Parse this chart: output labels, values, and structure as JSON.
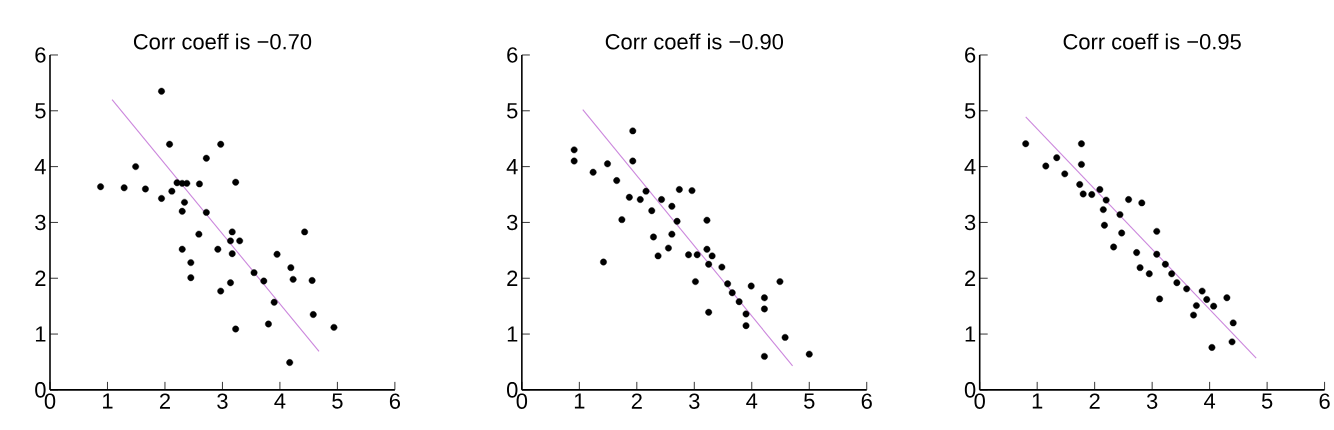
{
  "chart_data": [
    {
      "type": "scatter",
      "title": "Corr coeff is −0.70",
      "xlim": [
        0,
        6
      ],
      "ylim": [
        0,
        6
      ],
      "xticks": [
        0,
        1,
        2,
        3,
        4,
        5,
        6
      ],
      "yticks": [
        0,
        1,
        2,
        3,
        4,
        5,
        6
      ],
      "marker": "circle",
      "series": [
        {
          "color": "#000000",
          "x": [
            0.88,
            1.29,
            1.49,
            1.66,
            1.94,
            1.94,
            2.08,
            2.12,
            2.21,
            2.3,
            2.38,
            2.6,
            2.34,
            2.3,
            2.3,
            2.45,
            2.45,
            2.59,
            2.72,
            2.72,
            2.97,
            2.92,
            3.23,
            3.17,
            3.14,
            3.3,
            3.17,
            3.14,
            2.97,
            3.23,
            3.55,
            3.72,
            3.8,
            3.9,
            3.95,
            4.19,
            4.23,
            4.43,
            4.56,
            4.58,
            4.17,
            4.94
          ],
          "values": [
            3.64,
            3.62,
            4.0,
            3.6,
            5.35,
            3.43,
            4.4,
            3.56,
            3.71,
            3.7,
            3.7,
            3.69,
            3.36,
            3.2,
            2.52,
            2.28,
            2.01,
            2.79,
            4.15,
            3.18,
            4.4,
            2.52,
            3.72,
            2.83,
            2.67,
            2.67,
            2.44,
            1.92,
            1.77,
            1.09,
            2.1,
            1.95,
            1.18,
            1.57,
            2.43,
            2.19,
            1.98,
            2.83,
            1.96,
            1.35,
            0.49,
            1.12
          ]
        },
        {
          "type": "line",
          "marker": "none",
          "color": "#cc88dd",
          "x": [
            1.08,
            4.68
          ],
          "values": [
            5.2,
            0.69
          ]
        }
      ]
    },
    {
      "type": "scatter",
      "title": "Corr coeff is −0.90",
      "xlim": [
        0,
        6
      ],
      "ylim": [
        0,
        6
      ],
      "xticks": [
        0,
        1,
        2,
        3,
        4,
        5,
        6
      ],
      "yticks": [
        0,
        1,
        2,
        3,
        4,
        5,
        6
      ],
      "marker": "circle",
      "series": [
        {
          "color": "#000000",
          "x": [
            0.91,
            0.91,
            1.24,
            1.49,
            1.65,
            1.74,
            1.42,
            1.93,
            1.93,
            1.87,
            2.06,
            2.16,
            2.26,
            2.43,
            2.61,
            2.29,
            2.37,
            2.55,
            2.61,
            2.74,
            2.96,
            2.7,
            2.9,
            3.05,
            3.02,
            3.22,
            3.22,
            3.31,
            3.25,
            3.48,
            3.58,
            3.66,
            3.78,
            3.25,
            3.9,
            3.9,
            3.99,
            4.22,
            4.22,
            4.49,
            4.58,
            4.22,
            5.0
          ],
          "values": [
            4.3,
            4.1,
            3.9,
            4.05,
            3.75,
            3.05,
            2.29,
            4.64,
            4.1,
            3.45,
            3.41,
            3.56,
            3.21,
            3.41,
            3.29,
            2.74,
            2.4,
            2.54,
            2.79,
            3.59,
            3.57,
            3.02,
            2.42,
            2.42,
            1.94,
            3.04,
            2.52,
            2.4,
            2.25,
            2.2,
            1.9,
            1.74,
            1.58,
            1.39,
            1.36,
            1.15,
            1.86,
            1.65,
            1.45,
            1.94,
            0.94,
            0.6,
            0.64
          ]
        },
        {
          "type": "line",
          "marker": "none",
          "color": "#cc88dd",
          "x": [
            1.06,
            4.71
          ],
          "values": [
            5.02,
            0.43
          ]
        }
      ]
    },
    {
      "type": "scatter",
      "title": "Corr coeff is −0.95",
      "xlim": [
        0,
        6
      ],
      "ylim": [
        0,
        6
      ],
      "xticks": [
        0,
        1,
        2,
        3,
        4,
        5,
        6
      ],
      "yticks": [
        0,
        1,
        2,
        3,
        4,
        5,
        6
      ],
      "marker": "circle",
      "series": [
        {
          "color": "#000000",
          "x": [
            0.8,
            1.15,
            1.34,
            1.48,
            1.77,
            1.77,
            1.74,
            1.8,
            1.95,
            2.09,
            2.15,
            2.2,
            2.17,
            2.33,
            2.44,
            2.47,
            2.59,
            2.82,
            2.73,
            2.79,
            2.95,
            3.08,
            3.13,
            3.08,
            3.23,
            3.34,
            3.43,
            3.6,
            3.72,
            3.77,
            3.87,
            3.95,
            4.07,
            4.04,
            4.3,
            4.41,
            4.39
          ],
          "values": [
            4.41,
            4.01,
            4.16,
            3.87,
            4.41,
            4.04,
            3.68,
            3.51,
            3.5,
            3.59,
            3.23,
            3.4,
            2.95,
            2.56,
            3.14,
            2.81,
            3.41,
            3.35,
            2.46,
            2.19,
            2.08,
            2.84,
            1.63,
            2.43,
            2.25,
            2.08,
            1.92,
            1.81,
            1.34,
            1.51,
            1.77,
            1.62,
            1.5,
            0.76,
            1.65,
            1.2,
            0.86
          ]
        },
        {
          "type": "line",
          "marker": "none",
          "color": "#cc88dd",
          "x": [
            0.8,
            4.81
          ],
          "values": [
            4.89,
            0.57
          ]
        }
      ]
    }
  ]
}
